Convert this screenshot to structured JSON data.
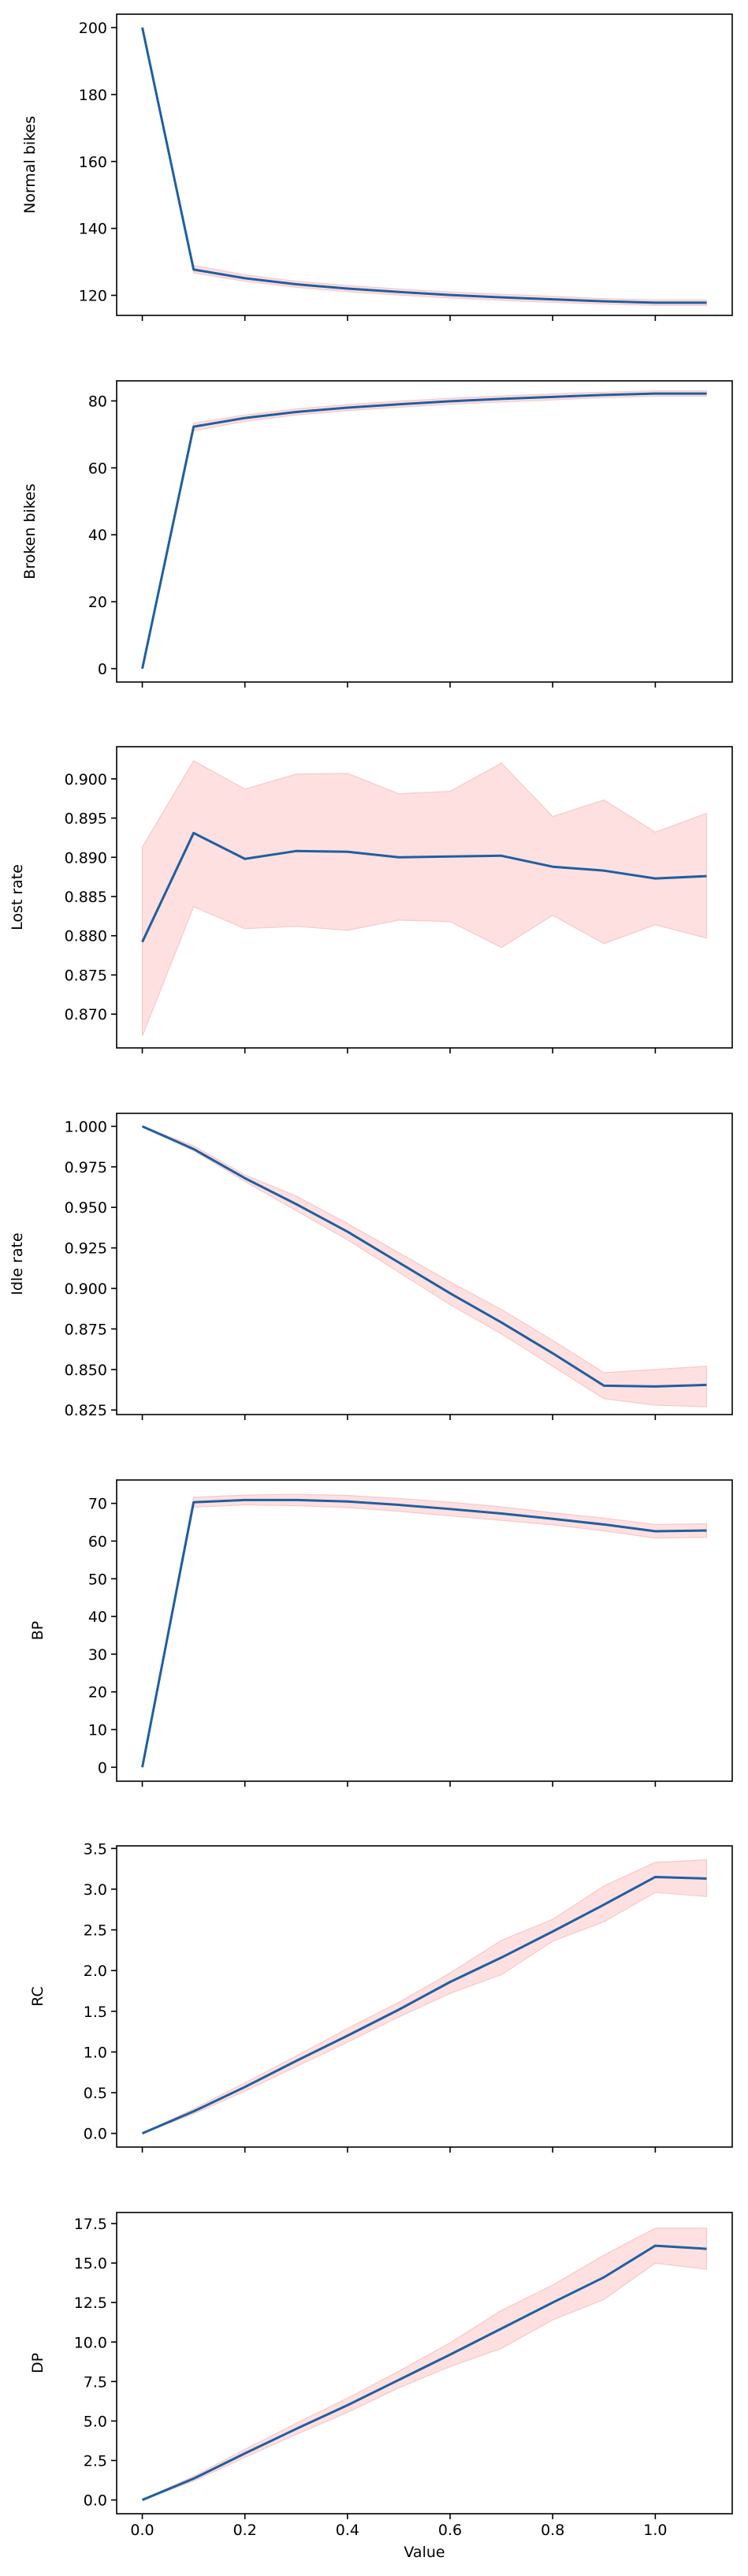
{
  "colors": {
    "line": "#1f5fa0",
    "band_fill": "#ffe0e0",
    "band_stroke": "#f8c8c8",
    "axis": "#000000"
  },
  "figure": {
    "shared_x": true,
    "x_label": "Value"
  },
  "chart_data": [
    {
      "type": "line",
      "ylabel": "Normal bikes",
      "xlim": [
        -0.05,
        1.15
      ],
      "ylim": [
        114,
        204
      ],
      "xticks": [
        0.0,
        0.2,
        0.4,
        0.6,
        0.8,
        1.0
      ],
      "yticks": [
        120,
        140,
        160,
        180,
        200
      ],
      "x": [
        0.0,
        0.1,
        0.2,
        0.3,
        0.4,
        0.5,
        0.6,
        0.7,
        0.8,
        0.9,
        1.0,
        1.1
      ],
      "mean": [
        200,
        127.7,
        125.1,
        123.3,
        122.0,
        121.0,
        120.1,
        119.4,
        118.8,
        118.2,
        117.8,
        117.8
      ],
      "lower": [
        200,
        126.7,
        124.2,
        122.4,
        121.1,
        120.1,
        119.2,
        118.5,
        117.9,
        117.4,
        117.0,
        117.0
      ],
      "upper": [
        200,
        128.9,
        126.1,
        124.2,
        122.9,
        121.9,
        121.0,
        120.3,
        119.7,
        119.0,
        118.6,
        118.6
      ]
    },
    {
      "type": "line",
      "ylabel": "Broken bikes",
      "xlim": [
        -0.05,
        1.15
      ],
      "ylim": [
        -4,
        86
      ],
      "xticks": [
        0.0,
        0.2,
        0.4,
        0.6,
        0.8,
        1.0
      ],
      "yticks": [
        0,
        20,
        40,
        60,
        80
      ],
      "x": [
        0.0,
        0.1,
        0.2,
        0.3,
        0.4,
        0.5,
        0.6,
        0.7,
        0.8,
        0.9,
        1.0,
        1.1
      ],
      "mean": [
        0,
        72.3,
        74.9,
        76.7,
        78.0,
        79.0,
        79.9,
        80.6,
        81.2,
        81.8,
        82.2,
        82.2
      ],
      "lower": [
        0,
        71.1,
        73.9,
        75.8,
        77.1,
        78.1,
        79.0,
        79.7,
        80.3,
        81.0,
        81.4,
        81.4
      ],
      "upper": [
        0,
        73.3,
        75.8,
        77.6,
        78.9,
        79.9,
        80.8,
        81.5,
        82.1,
        82.6,
        83.0,
        83.0
      ]
    },
    {
      "type": "line",
      "ylabel": "Lost rate",
      "xlim": [
        -0.05,
        1.15
      ],
      "ylim": [
        0.8657,
        0.9041
      ],
      "xticks": [
        0.0,
        0.2,
        0.4,
        0.6,
        0.8,
        1.0
      ],
      "yticks": [
        0.87,
        0.875,
        0.88,
        0.885,
        0.89,
        0.895,
        0.9
      ],
      "x": [
        0.0,
        0.1,
        0.2,
        0.3,
        0.4,
        0.5,
        0.6,
        0.7,
        0.8,
        0.9,
        1.0,
        1.1
      ],
      "mean": [
        0.8792,
        0.8931,
        0.8898,
        0.8908,
        0.8907,
        0.89,
        0.8901,
        0.8902,
        0.8888,
        0.8883,
        0.8873,
        0.8876
      ],
      "lower": [
        0.8672,
        0.8837,
        0.8809,
        0.8812,
        0.8807,
        0.882,
        0.8818,
        0.8785,
        0.8826,
        0.879,
        0.8814,
        0.8797
      ],
      "upper": [
        0.8913,
        0.9023,
        0.8987,
        0.9006,
        0.9007,
        0.8981,
        0.8984,
        0.902,
        0.8952,
        0.8973,
        0.8932,
        0.8956
      ]
    },
    {
      "type": "line",
      "ylabel": "Idle rate",
      "xlim": [
        -0.05,
        1.15
      ],
      "ylim": [
        0.8222,
        1.008
      ],
      "xticks": [
        0.0,
        0.2,
        0.4,
        0.6,
        0.8,
        1.0
      ],
      "yticks": [
        0.825,
        0.85,
        0.875,
        0.9,
        0.925,
        0.95,
        0.975,
        1.0
      ],
      "x": [
        0.0,
        0.1,
        0.2,
        0.3,
        0.4,
        0.5,
        0.6,
        0.7,
        0.8,
        0.9,
        1.0,
        1.1
      ],
      "mean": [
        1.0,
        0.986,
        0.968,
        0.952,
        0.935,
        0.916,
        0.897,
        0.879,
        0.86,
        0.84,
        0.8395,
        0.8405
      ],
      "lower": [
        1.0,
        0.985,
        0.966,
        0.948,
        0.93,
        0.91,
        0.89,
        0.872,
        0.852,
        0.832,
        0.828,
        0.827
      ],
      "upper": [
        1.0,
        0.988,
        0.97,
        0.957,
        0.94,
        0.922,
        0.904,
        0.887,
        0.868,
        0.848,
        0.85,
        0.852
      ]
    },
    {
      "type": "line",
      "ylabel": "BP",
      "xlim": [
        -0.05,
        1.15
      ],
      "ylim": [
        -3.7,
        76.2
      ],
      "xticks": [
        0.0,
        0.2,
        0.4,
        0.6,
        0.8,
        1.0
      ],
      "yticks": [
        0,
        10,
        20,
        30,
        40,
        50,
        60,
        70
      ],
      "x": [
        0.0,
        0.1,
        0.2,
        0.3,
        0.4,
        0.5,
        0.6,
        0.7,
        0.8,
        0.9,
        1.0,
        1.1
      ],
      "mean": [
        0,
        70.3,
        70.9,
        70.9,
        70.5,
        69.6,
        68.5,
        67.3,
        65.9,
        64.4,
        62.6,
        62.8
      ],
      "lower": [
        0,
        69.0,
        69.6,
        69.4,
        68.9,
        67.9,
        66.7,
        65.5,
        64.3,
        62.7,
        60.8,
        61.0
      ],
      "upper": [
        0,
        71.6,
        72.2,
        72.4,
        72.1,
        71.3,
        70.3,
        69.1,
        67.5,
        66.1,
        64.4,
        64.6
      ]
    },
    {
      "type": "line",
      "ylabel": "RC",
      "xlim": [
        -0.05,
        1.15
      ],
      "ylim": [
        -0.168,
        3.532
      ],
      "xticks": [
        0.0,
        0.2,
        0.4,
        0.6,
        0.8,
        1.0
      ],
      "yticks": [
        0.0,
        0.5,
        1.0,
        1.5,
        2.0,
        2.5,
        3.0,
        3.5
      ],
      "x": [
        0.0,
        0.1,
        0.2,
        0.3,
        0.4,
        0.5,
        0.6,
        0.7,
        0.8,
        0.9,
        1.0,
        1.1
      ],
      "mean": [
        0,
        0.27,
        0.57,
        0.89,
        1.2,
        1.52,
        1.86,
        2.16,
        2.48,
        2.81,
        3.15,
        3.13
      ],
      "lower": [
        0,
        0.24,
        0.52,
        0.82,
        1.12,
        1.43,
        1.72,
        1.95,
        2.36,
        2.6,
        2.96,
        2.91
      ],
      "upper": [
        0,
        0.3,
        0.62,
        0.95,
        1.29,
        1.61,
        1.97,
        2.37,
        2.63,
        3.04,
        3.33,
        3.36
      ]
    },
    {
      "type": "line",
      "ylabel": "DP",
      "xlim": [
        -0.05,
        1.15
      ],
      "ylim": [
        -0.87,
        18.2
      ],
      "xticks": [
        0.0,
        0.2,
        0.4,
        0.6,
        0.8,
        1.0
      ],
      "yticks": [
        0.0,
        2.5,
        5.0,
        7.5,
        10.0,
        12.5,
        15.0,
        17.5
      ],
      "x": [
        0.0,
        0.1,
        0.2,
        0.3,
        0.4,
        0.5,
        0.6,
        0.7,
        0.8,
        0.9,
        1.0,
        1.1
      ],
      "mean": [
        0,
        1.35,
        2.95,
        4.5,
        6.0,
        7.6,
        9.2,
        10.85,
        12.5,
        14.1,
        16.1,
        15.9
      ],
      "lower": [
        0,
        1.2,
        2.7,
        4.15,
        5.55,
        7.1,
        8.45,
        9.6,
        11.4,
        12.7,
        15.0,
        14.6
      ],
      "upper": [
        0,
        1.5,
        3.2,
        4.85,
        6.45,
        8.15,
        9.95,
        12.0,
        13.6,
        15.5,
        17.2,
        17.2
      ]
    }
  ]
}
